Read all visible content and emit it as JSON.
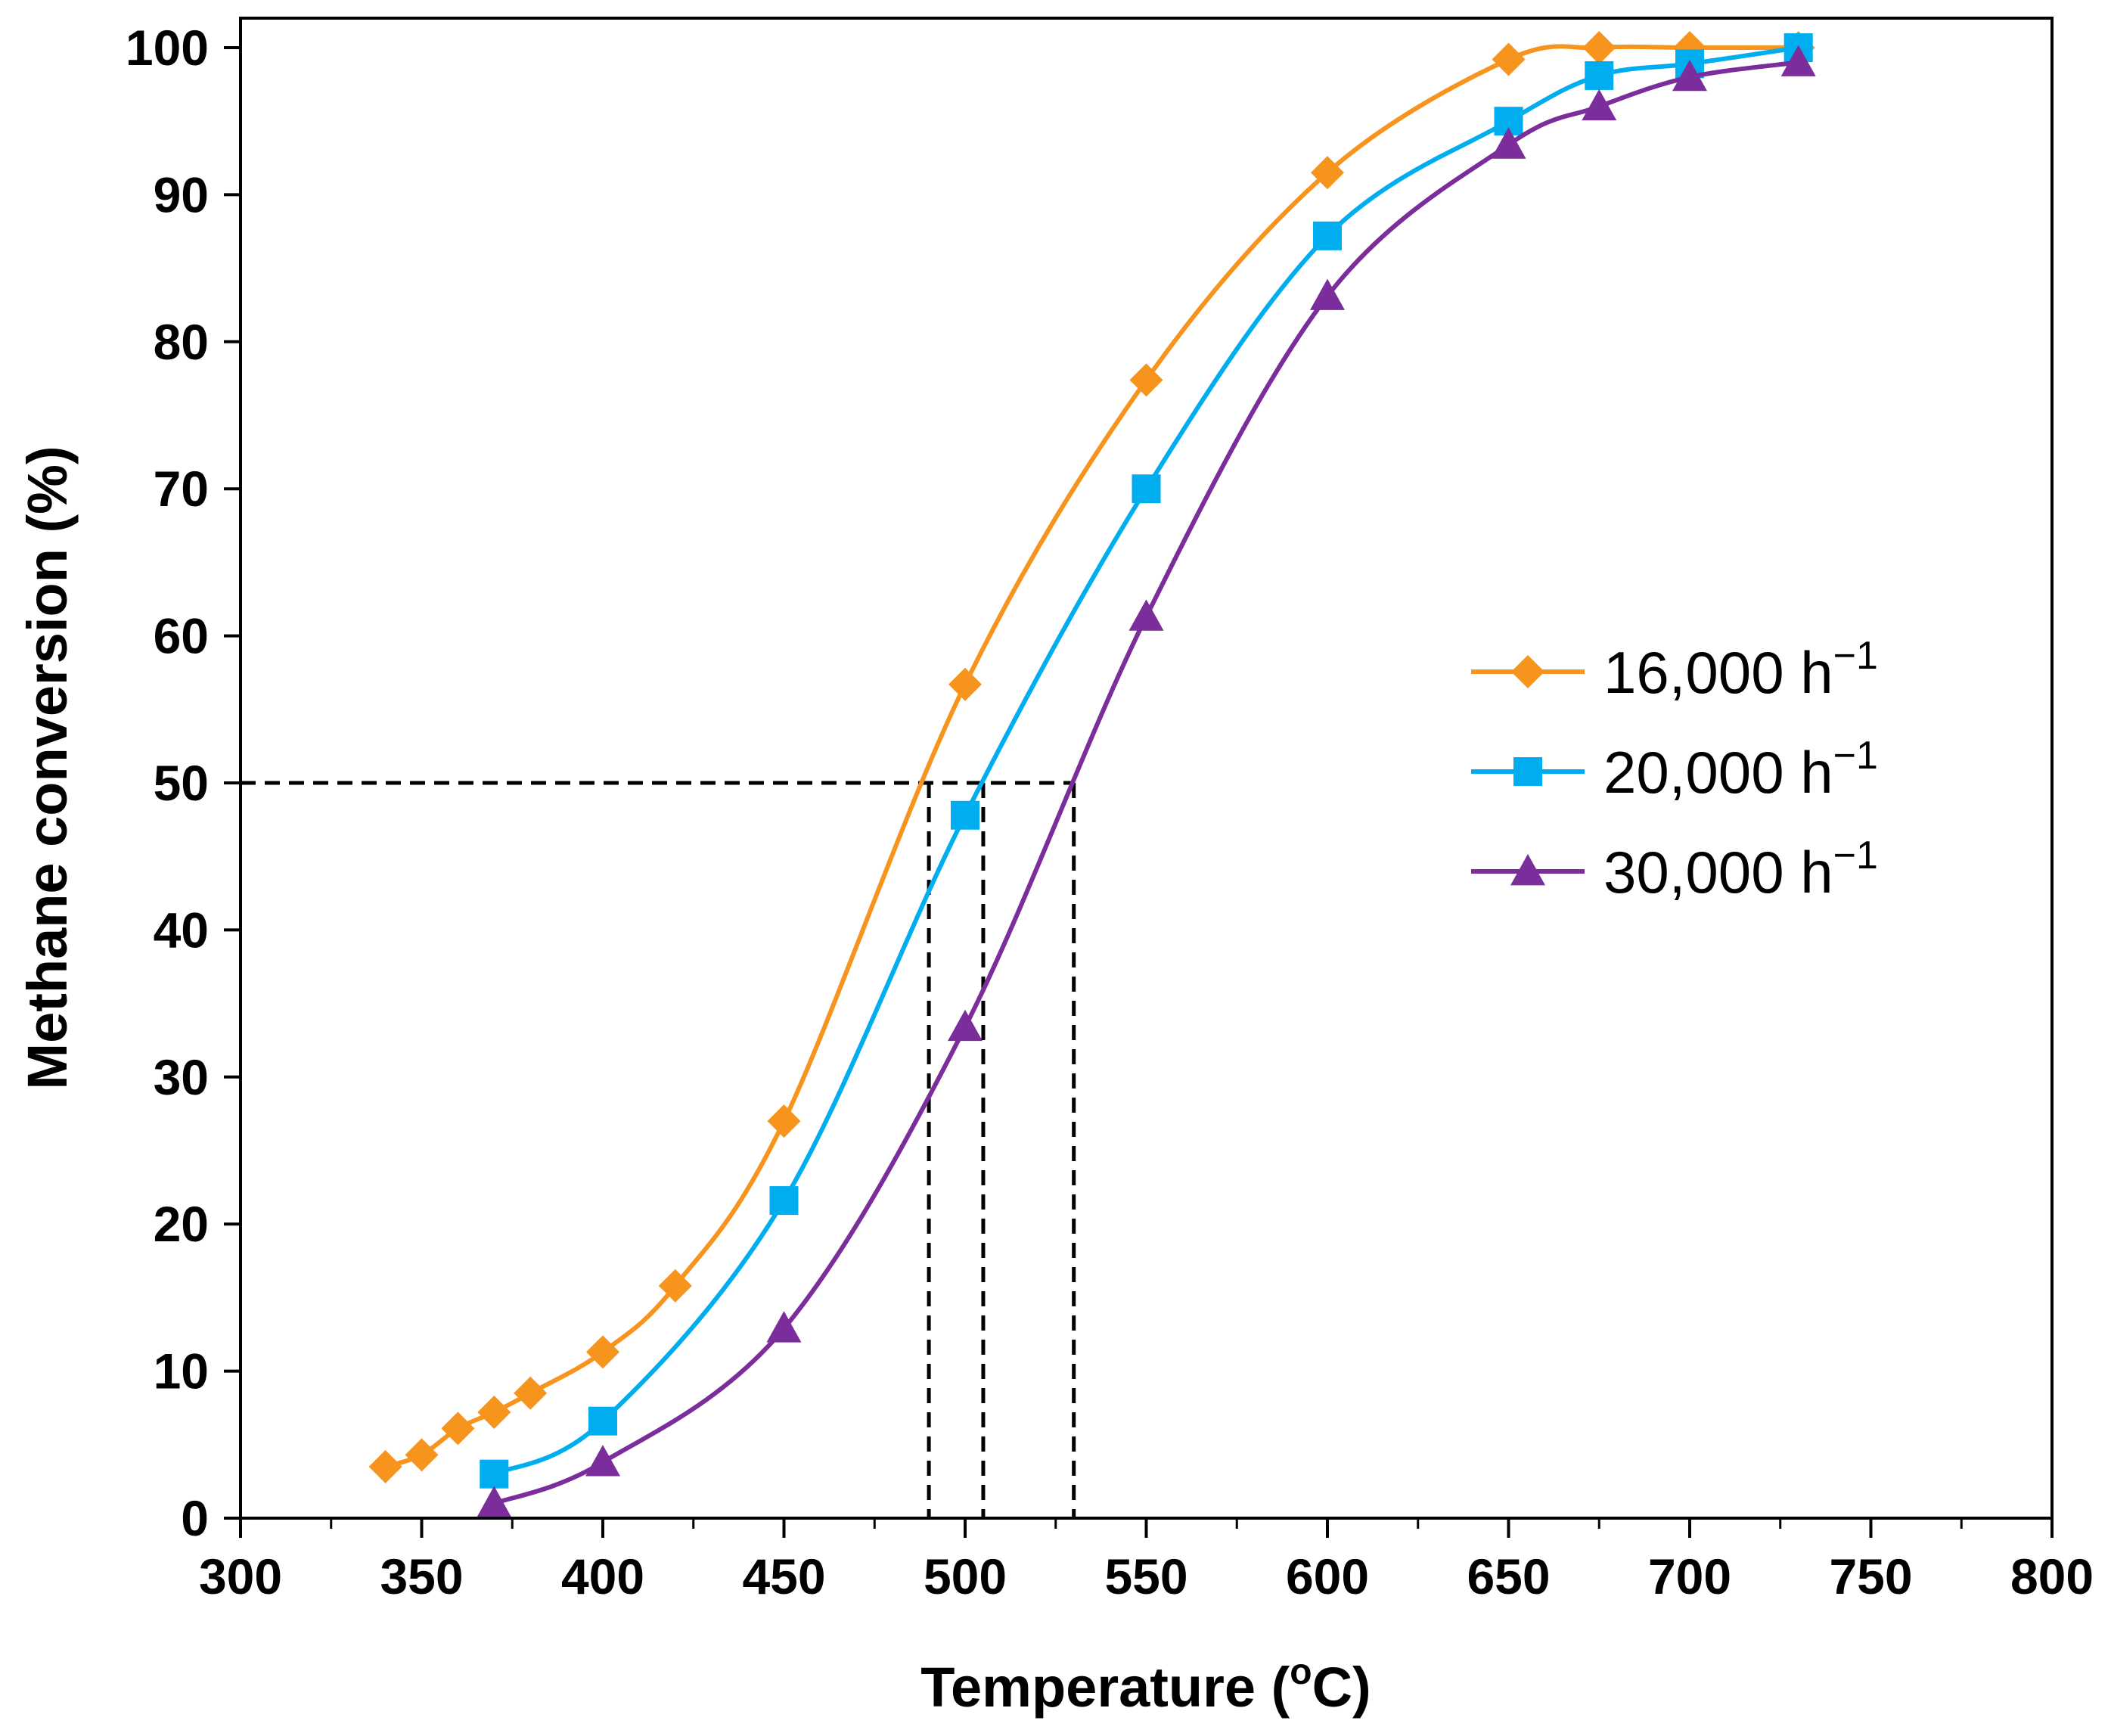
{
  "chart_data": {
    "type": "line",
    "title": "",
    "xlabel": "Temperature (",
    "xlabel_sup": "o",
    "xlabel_tail": "C)",
    "ylabel": "Methane conversion (%)",
    "xlim": [
      300,
      800
    ],
    "ylim": [
      0,
      100
    ],
    "x_ticks": [
      300,
      350,
      400,
      450,
      500,
      550,
      600,
      650,
      700,
      750,
      800
    ],
    "y_ticks": [
      0,
      10,
      20,
      30,
      40,
      50,
      60,
      70,
      80,
      90,
      100
    ],
    "x_tick_labels": [
      "300",
      "350",
      "400",
      "450",
      "500",
      "550",
      "600",
      "650",
      "700",
      "750",
      "800"
    ],
    "y_tick_labels": [
      "0",
      "10",
      "20",
      "30",
      "40",
      "50",
      "60",
      "70",
      "80",
      "90",
      "100"
    ],
    "grid": false,
    "legend_position": "right-middle",
    "series": [
      {
        "name": "16,000 h",
        "name_sup": "−1",
        "marker": "diamond",
        "color": "#F7941D",
        "x": [
          340,
          350,
          360,
          370,
          380,
          400,
          420,
          450,
          500,
          550,
          600,
          650,
          675,
          700,
          730
        ],
        "y": [
          3.5,
          4.3,
          6.1,
          7.2,
          8.5,
          11.3,
          15.8,
          27.0,
          56.7,
          77.4,
          91.5,
          99.2,
          100.0,
          100.0,
          100.0
        ]
      },
      {
        "name": "20,000 h",
        "name_sup": "−1",
        "marker": "square",
        "color": "#00AEEF",
        "x": [
          370,
          400,
          450,
          500,
          550,
          600,
          650,
          675,
          700,
          730
        ],
        "y": [
          3.0,
          6.6,
          21.6,
          47.8,
          70.0,
          87.2,
          95.0,
          98.1,
          98.9,
          100.0
        ]
      },
      {
        "name": "30,000 h",
        "name_sup": "−1",
        "marker": "triangle",
        "color": "#7B2D9B",
        "x": [
          370,
          400,
          450,
          500,
          550,
          600,
          650,
          675,
          700,
          730
        ],
        "y": [
          1.0,
          3.8,
          12.9,
          33.4,
          61.3,
          83.1,
          93.4,
          96.0,
          98.0,
          99.0
        ]
      }
    ],
    "annotations": {
      "reference_level": 50,
      "reference_temperatures": [
        490,
        505,
        530
      ]
    }
  }
}
